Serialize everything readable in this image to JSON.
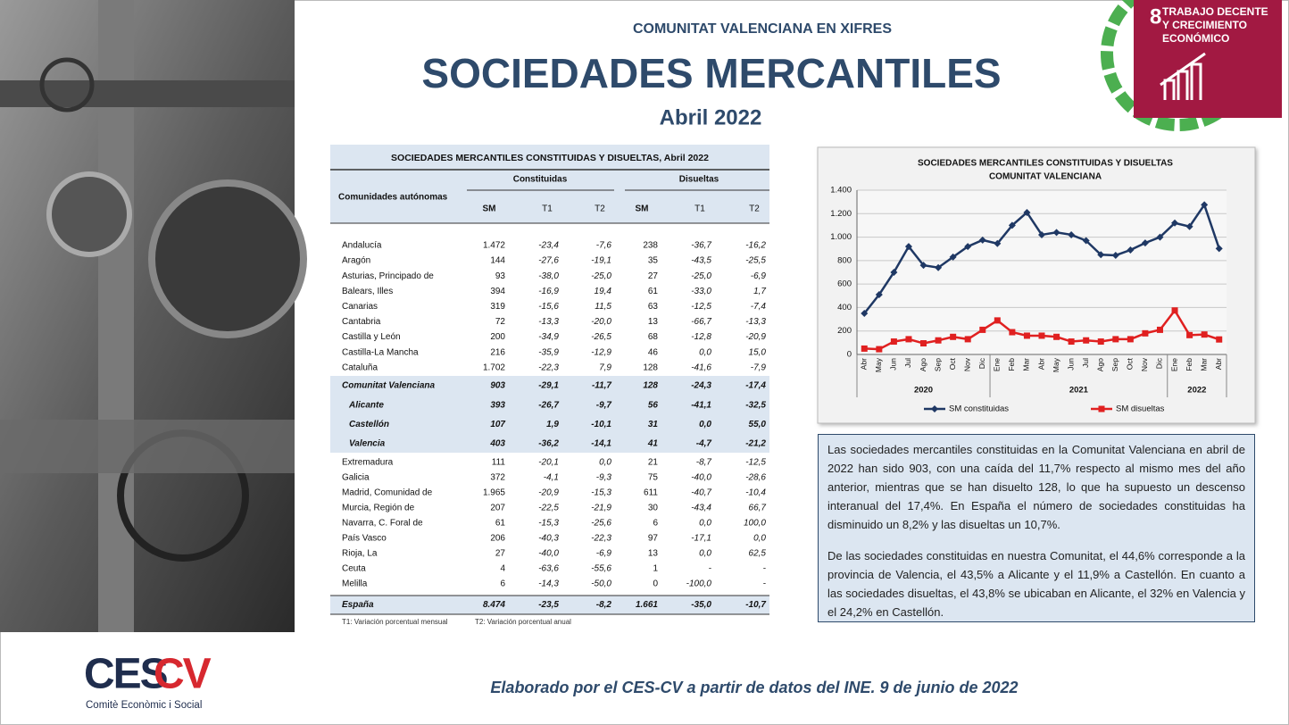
{
  "header": {
    "kicker": "COMUNITAT VALENCIANA EN XIFRES",
    "title": "SOCIEDADES MERCANTILES",
    "period": "Abril 2022"
  },
  "sdg": {
    "number": "8",
    "lines": [
      "TRABAJO DECENTE",
      "Y CRECIMIENTO",
      "ECONÓMICO"
    ]
  },
  "table": {
    "title": "SOCIEDADES MERCANTILES CONSTITUIDAS Y DISUELTAS, Abril 2022",
    "row_header": "Comunidades autónomas",
    "column_groups": [
      "Constituidas",
      "Disueltas"
    ],
    "columns": [
      "SM",
      "T1",
      "T2",
      "SM",
      "T1",
      "T2"
    ],
    "rows": [
      [
        "Andalucía",
        "1.472",
        "-23,4",
        "-7,6",
        "238",
        "-36,7",
        "-16,2"
      ],
      [
        "Aragón",
        "144",
        "-27,6",
        "-19,1",
        "35",
        "-43,5",
        "-25,5"
      ],
      [
        "Asturias, Principado de",
        "93",
        "-38,0",
        "-25,0",
        "27",
        "-25,0",
        "-6,9"
      ],
      [
        "Balears, Illes",
        "394",
        "-16,9",
        "19,4",
        "61",
        "-33,0",
        "1,7"
      ],
      [
        "Canarias",
        "319",
        "-15,6",
        "11,5",
        "63",
        "-12,5",
        "-7,4"
      ],
      [
        "Cantabria",
        "72",
        "-13,3",
        "-20,0",
        "13",
        "-66,7",
        "-13,3"
      ],
      [
        "Castilla y León",
        "200",
        "-34,9",
        "-26,5",
        "68",
        "-12,8",
        "-20,9"
      ],
      [
        "Castilla-La Mancha",
        "216",
        "-35,9",
        "-12,9",
        "46",
        "0,0",
        "15,0"
      ],
      [
        "Cataluña",
        "1.702",
        "-22,3",
        "7,9",
        "128",
        "-41,6",
        "-7,9"
      ],
      [
        "Comunitat Valenciana",
        "903",
        "-29,1",
        "-11,7",
        "128",
        "-24,3",
        "-17,4"
      ],
      [
        "Alicante",
        "393",
        "-26,7",
        "-9,7",
        "56",
        "-41,1",
        "-32,5"
      ],
      [
        "Castellón",
        "107",
        "1,9",
        "-10,1",
        "31",
        "0,0",
        "55,0"
      ],
      [
        "Valencia",
        "403",
        "-36,2",
        "-14,1",
        "41",
        "-4,7",
        "-21,2"
      ],
      [
        "Extremadura",
        "111",
        "-20,1",
        "0,0",
        "21",
        "-8,7",
        "-12,5"
      ],
      [
        "Galicia",
        "372",
        "-4,1",
        "-9,3",
        "75",
        "-40,0",
        "-28,6"
      ],
      [
        "Madrid, Comunidad de",
        "1.965",
        "-20,9",
        "-15,3",
        "611",
        "-40,7",
        "-10,4"
      ],
      [
        "Murcia, Región de",
        "207",
        "-22,5",
        "-21,9",
        "30",
        "-43,4",
        "66,7"
      ],
      [
        "Navarra, C. Foral de",
        "61",
        "-15,3",
        "-25,6",
        "6",
        "0,0",
        "100,0"
      ],
      [
        "País Vasco",
        "206",
        "-40,3",
        "-22,3",
        "97",
        "-17,1",
        "0,0"
      ],
      [
        "Rioja, La",
        "27",
        "-40,0",
        "-6,9",
        "13",
        "0,0",
        "62,5"
      ],
      [
        "Ceuta",
        "4",
        "-63,6",
        "-55,6",
        "1",
        "-",
        "-"
      ],
      [
        "Melilla",
        "6",
        "-14,3",
        "-50,0",
        "0",
        "-100,0",
        "-"
      ]
    ],
    "total": [
      "España",
      "8.474",
      "-23,5",
      "-8,2",
      "1.661",
      "-35,0",
      "-10,7"
    ],
    "notes": [
      "T1: Variación porcentual mensual",
      "T2: Variación porcentual anual"
    ]
  },
  "chart_data": {
    "type": "line",
    "title": [
      "SOCIEDADES MERCANTILES CONSTITUIDAS Y DISUELTAS",
      "COMUNITAT VALENCIANA"
    ],
    "categories": [
      "Abr",
      "May",
      "Jun",
      "Jul",
      "Ago",
      "Sep",
      "Oct",
      "Nov",
      "Dic",
      "Ene",
      "Feb",
      "Mar",
      "Abr",
      "May",
      "Jun",
      "Jul",
      "Ago",
      "Sep",
      "Oct",
      "Nov",
      "Dic",
      "Ene",
      "Feb",
      "Mar",
      "Abr"
    ],
    "year_groups": [
      "2020",
      "2021",
      "2022"
    ],
    "ylim": [
      0,
      1400
    ],
    "yticks": [
      0,
      200,
      400,
      600,
      800,
      {
        "value": 1000,
        "label": "1.000"
      },
      {
        "value": 1200,
        "label": "1.200"
      },
      {
        "value": 1400,
        "label": "1.400"
      }
    ],
    "grid": true,
    "series": [
      {
        "name": "SM constituidas",
        "color": "#1f3864",
        "values": [
          350,
          510,
          700,
          920,
          760,
          740,
          830,
          920,
          975,
          945,
          1100,
          1210,
          1020,
          1040,
          1020,
          970,
          850,
          845,
          890,
          950,
          1000,
          1120,
          1090,
          1275,
          903
        ]
      },
      {
        "name": "SM disueltas",
        "color": "#e02020",
        "values": [
          50,
          45,
          110,
          130,
          95,
          120,
          150,
          130,
          210,
          290,
          190,
          160,
          160,
          150,
          110,
          120,
          110,
          130,
          130,
          180,
          210,
          375,
          165,
          170,
          128
        ]
      }
    ]
  },
  "paragraphs": [
    "Las sociedades mercantiles constituidas en la Comunitat Valenciana en abril de 2022 han sido 903, con una caída del 11,7% respecto al mismo mes del año anterior, mientras que se han disuelto 128, lo que ha supuesto un descenso interanual del 17,4%. En España el número de sociedades constituidas ha disminuido un 8,2% y las disueltas un 10,7%.",
    "De las sociedades constituidas en nuestra Comunitat, el 44,6% corresponde a la provincia de Valencia, el 43,5% a Alicante y el 11,9% a Castellón. En cuanto a las sociedades disueltas, el 43,8% se ubicaban en Alicante, el 32% en Valencia y el 24,2% en Castellón."
  ],
  "logo": {
    "part1": "CES",
    "part2": "CV",
    "subtitle": "Comitè Econòmic i Social"
  },
  "footer": "Elaborado por el CES-CV a partir de datos del INE. 9 de junio de 2022"
}
